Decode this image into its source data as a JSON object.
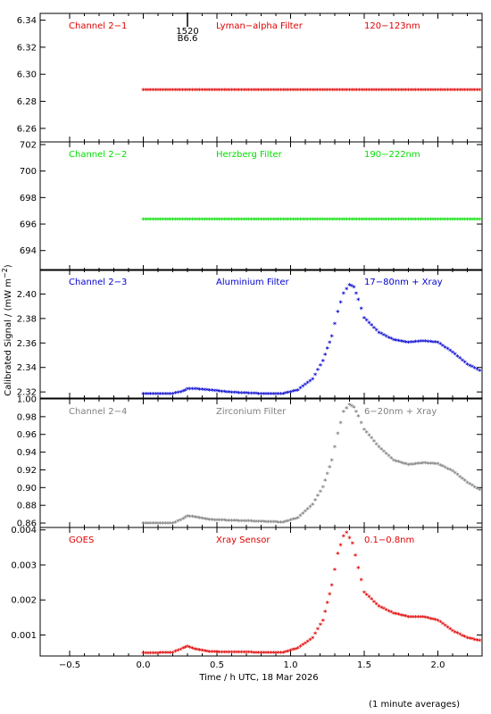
{
  "xaxis": {
    "label": "Time / h UTC, 18 Mar 2026",
    "range": [
      -0.7,
      2.3
    ],
    "ticks": [
      -0.5,
      0.0,
      0.5,
      1.0,
      1.5,
      2.0
    ],
    "tick_labels": [
      "−0.5",
      "0.0",
      "0.5",
      "1.0",
      "1.5",
      "2.0"
    ]
  },
  "ylabel": "Calibrated Signal / (mW m",
  "ylabel_sup": "−2",
  "ylabel_close": ")",
  "footnote": "(1 minute averages)",
  "event_marker": {
    "x": 0.3,
    "time_label": "1520",
    "class_label": "B6.6"
  },
  "colors": {
    "red": "#e00000",
    "green": "#00e000",
    "blue": "#0000d0",
    "grey": "#808080"
  },
  "chart_data": [
    {
      "type": "scatter",
      "channel": "Channel 2−1",
      "filter": "Lyman−alpha Filter",
      "band": "120−123nm",
      "color": "#e00000",
      "ylim": [
        6.25,
        6.345
      ],
      "yticks": [
        6.26,
        6.28,
        6.3,
        6.32,
        6.34
      ],
      "ytick_labels": [
        "6.26",
        "6.28",
        "6.30",
        "6.32",
        "6.34"
      ],
      "x": [
        0.0,
        0.25,
        0.5,
        0.75,
        1.0,
        1.25,
        1.5,
        1.75,
        2.0,
        2.25,
        2.3
      ],
      "y": [
        6.288,
        6.288,
        6.288,
        6.288,
        6.288,
        6.288,
        6.288,
        6.288,
        6.288,
        6.288,
        6.288
      ]
    },
    {
      "type": "scatter",
      "channel": "Channel 2−2",
      "filter": "Herzberg Filter",
      "band": "190−222nm",
      "color": "#00e000",
      "ylim": [
        692.5,
        702.2
      ],
      "yticks": [
        694,
        696,
        698,
        700,
        702
      ],
      "ytick_labels": [
        "694",
        "696",
        "698",
        "700",
        "702"
      ],
      "x": [
        0.0,
        0.25,
        0.5,
        0.75,
        1.0,
        1.25,
        1.5,
        1.75,
        2.0,
        2.25,
        2.3
      ],
      "y": [
        696.3,
        696.3,
        696.3,
        696.3,
        696.3,
        696.3,
        696.3,
        696.3,
        696.3,
        696.3,
        696.3
      ]
    },
    {
      "type": "scatter",
      "channel": "Channel 2−3",
      "filter": "Aluminium Filter",
      "band": "17−80nm + Xray",
      "color": "#0000d0",
      "ylim": [
        2.315,
        2.42
      ],
      "yticks": [
        2.32,
        2.34,
        2.36,
        2.38,
        2.4
      ],
      "ytick_labels": [
        "2.32",
        "2.34",
        "2.36",
        "2.38",
        "2.40"
      ],
      "x": [
        0.0,
        0.1,
        0.2,
        0.27,
        0.3,
        0.35,
        0.45,
        0.6,
        0.8,
        0.95,
        1.05,
        1.15,
        1.22,
        1.28,
        1.32,
        1.36,
        1.4,
        1.43,
        1.46,
        1.5,
        1.6,
        1.7,
        1.8,
        1.9,
        2.0,
        2.1,
        2.2,
        2.3
      ],
      "y": [
        2.318,
        2.318,
        2.318,
        2.32,
        2.322,
        2.322,
        2.321,
        2.319,
        2.318,
        2.318,
        2.321,
        2.33,
        2.345,
        2.365,
        2.385,
        2.4,
        2.407,
        2.405,
        2.395,
        2.38,
        2.368,
        2.362,
        2.36,
        2.361,
        2.36,
        2.352,
        2.342,
        2.336
      ]
    },
    {
      "type": "scatter",
      "channel": "Channel 2−4",
      "filter": "Zirconium Filter",
      "band": "6−20nm + Xray",
      "color": "#808080",
      "ylim": [
        0.855,
        1.0
      ],
      "yticks": [
        0.86,
        0.88,
        0.9,
        0.92,
        0.94,
        0.96,
        0.98,
        1.0
      ],
      "ytick_labels": [
        "0.86",
        "0.88",
        "0.90",
        "0.92",
        "0.94",
        "0.96",
        "0.98",
        "1.00"
      ],
      "x": [
        0.0,
        0.1,
        0.2,
        0.27,
        0.3,
        0.35,
        0.45,
        0.6,
        0.8,
        0.95,
        1.05,
        1.15,
        1.22,
        1.28,
        1.32,
        1.36,
        1.4,
        1.43,
        1.46,
        1.5,
        1.6,
        1.7,
        1.8,
        1.9,
        2.0,
        2.1,
        2.2,
        2.3
      ],
      "y": [
        0.859,
        0.859,
        0.859,
        0.864,
        0.867,
        0.866,
        0.863,
        0.862,
        0.861,
        0.86,
        0.865,
        0.88,
        0.9,
        0.93,
        0.96,
        0.985,
        0.993,
        0.99,
        0.98,
        0.965,
        0.945,
        0.93,
        0.925,
        0.927,
        0.926,
        0.918,
        0.905,
        0.895
      ]
    },
    {
      "type": "scatter",
      "channel": "GOES",
      "filter": "Xray Sensor",
      "band": "0.1−0.8nm",
      "color": "#e00000",
      "ylim": [
        0.0004,
        0.00407
      ],
      "yticks": [
        0.001,
        0.002,
        0.003,
        0.004
      ],
      "ytick_labels": [
        "0.001",
        "0.002",
        "0.003",
        "0.004"
      ],
      "x": [
        0.0,
        0.1,
        0.2,
        0.27,
        0.3,
        0.35,
        0.45,
        0.6,
        0.8,
        0.95,
        1.05,
        1.15,
        1.22,
        1.28,
        1.32,
        1.36,
        1.38,
        1.42,
        1.46,
        1.5,
        1.6,
        1.7,
        1.8,
        1.9,
        2.0,
        2.1,
        2.2,
        2.3
      ],
      "y": [
        0.00047,
        0.00047,
        0.00048,
        0.0006,
        0.00065,
        0.00058,
        0.0005,
        0.00049,
        0.00048,
        0.00048,
        0.0006,
        0.0009,
        0.0014,
        0.0024,
        0.0033,
        0.0038,
        0.0039,
        0.0036,
        0.0029,
        0.0022,
        0.0018,
        0.0016,
        0.0015,
        0.0015,
        0.0014,
        0.0011,
        0.0009,
        0.0008
      ]
    }
  ]
}
